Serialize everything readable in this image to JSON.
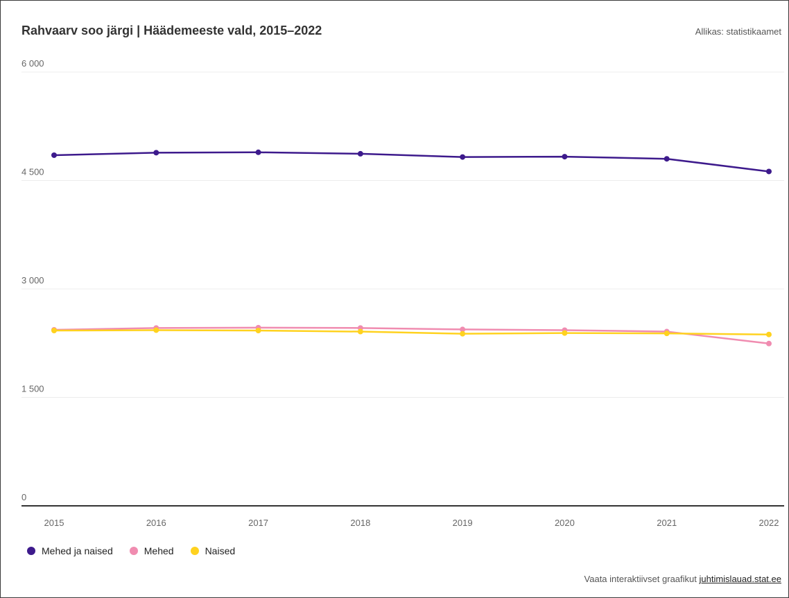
{
  "header": {
    "title": "Rahvaarv soo järgi | Häädemeeste vald, 2015–2022",
    "source": "Allikas: statistikaamet"
  },
  "footer": {
    "prefix": "Vaata interaktiivset graafikut ",
    "link": "juhtimislauad.stat.ee"
  },
  "chart_data": {
    "type": "line",
    "title": "Rahvaarv soo järgi | Häädemeeste vald, 2015–2022",
    "x": [
      "2015",
      "2016",
      "2017",
      "2018",
      "2019",
      "2020",
      "2021",
      "2022"
    ],
    "ylim": [
      0,
      6000
    ],
    "yticks": [
      0,
      1500,
      3000,
      4500,
      6000
    ],
    "ytick_labels": [
      "0",
      "1 500",
      "3 000",
      "4 500",
      "6 000"
    ],
    "grid": true,
    "legend_position": "bottom-left",
    "series": [
      {
        "name": "Mehed ja naised",
        "color": "#3d1a8c",
        "values": [
          4850,
          4885,
          4890,
          4870,
          4825,
          4830,
          4800,
          4625
        ]
      },
      {
        "name": "Mehed",
        "color": "#f08cb0",
        "values": [
          2435,
          2460,
          2465,
          2460,
          2440,
          2430,
          2410,
          2245
        ]
      },
      {
        "name": "Naised",
        "color": "#ffd21f",
        "values": [
          2425,
          2430,
          2425,
          2410,
          2380,
          2390,
          2385,
          2370
        ]
      }
    ]
  }
}
